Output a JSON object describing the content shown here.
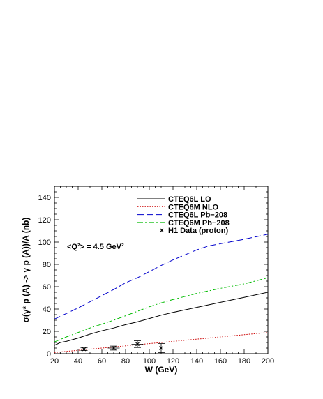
{
  "chart_data": {
    "type": "line",
    "xlabel": "W (GeV)",
    "ylabel": "σ(γ* p (A) -> γ p (A))/A (nb)",
    "xlim": [
      20,
      200
    ],
    "ylim": [
      0,
      150
    ],
    "xticks": [
      20,
      40,
      60,
      80,
      100,
      120,
      140,
      160,
      180,
      200
    ],
    "yticks": [
      0,
      20,
      40,
      60,
      80,
      100,
      120,
      140
    ],
    "annotation": "<Q²> = 4.5 GeV²",
    "legend_position": "top-right",
    "grid": false,
    "series": [
      {
        "name": "CTEQ6L LO",
        "color": "#000000",
        "dash": "solid",
        "x": [
          20,
          25,
          30,
          40,
          50,
          60,
          70,
          80,
          90,
          100,
          110,
          120,
          140,
          160,
          180,
          200
        ],
        "y": [
          7.5,
          10,
          11,
          14,
          17.5,
          20.5,
          23,
          26,
          28.5,
          31.5,
          34.5,
          37,
          41.5,
          46,
          50.5,
          55
        ]
      },
      {
        "name": "CTEQ6M NLO",
        "color": "#cc0000",
        "dash": "dotted",
        "x": [
          20,
          30,
          40,
          50,
          60,
          70,
          80,
          90,
          100,
          120,
          140,
          160,
          180,
          200
        ],
        "y": [
          1,
          2,
          3,
          4,
          5,
          6,
          7,
          8,
          9,
          11,
          13,
          15,
          17,
          19
        ]
      },
      {
        "name": "CTEQ6L Pb−208",
        "color": "#0000cc",
        "dash": "dashed",
        "x": [
          20,
          25,
          30,
          40,
          50,
          60,
          70,
          80,
          90,
          100,
          110,
          120,
          130,
          140,
          150,
          160,
          180,
          200
        ],
        "y": [
          31,
          33.5,
          36,
          41,
          46.5,
          52,
          57.5,
          63.5,
          68,
          73.5,
          79,
          84,
          88.5,
          93,
          96.5,
          98.5,
          102.5,
          107
        ]
      },
      {
        "name": "CTEQ6M Pb−208",
        "color": "#00bb00",
        "dash": "dashdot",
        "x": [
          20,
          30,
          40,
          50,
          60,
          70,
          80,
          90,
          100,
          110,
          120,
          140,
          160,
          180,
          200
        ],
        "y": [
          10.5,
          15,
          19,
          23,
          26.5,
          30,
          34,
          38,
          42,
          45.5,
          48.5,
          54,
          58.5,
          62.5,
          68
        ]
      }
    ],
    "data_points": {
      "name": "H1 Data (proton)",
      "marker": "×",
      "x": [
        45,
        70,
        90,
        110
      ],
      "y": [
        4,
        5,
        8.5,
        5
      ],
      "yerr": [
        1.2,
        1.8,
        3,
        4
      ],
      "xerr": [
        5,
        5,
        5,
        0
      ]
    }
  }
}
